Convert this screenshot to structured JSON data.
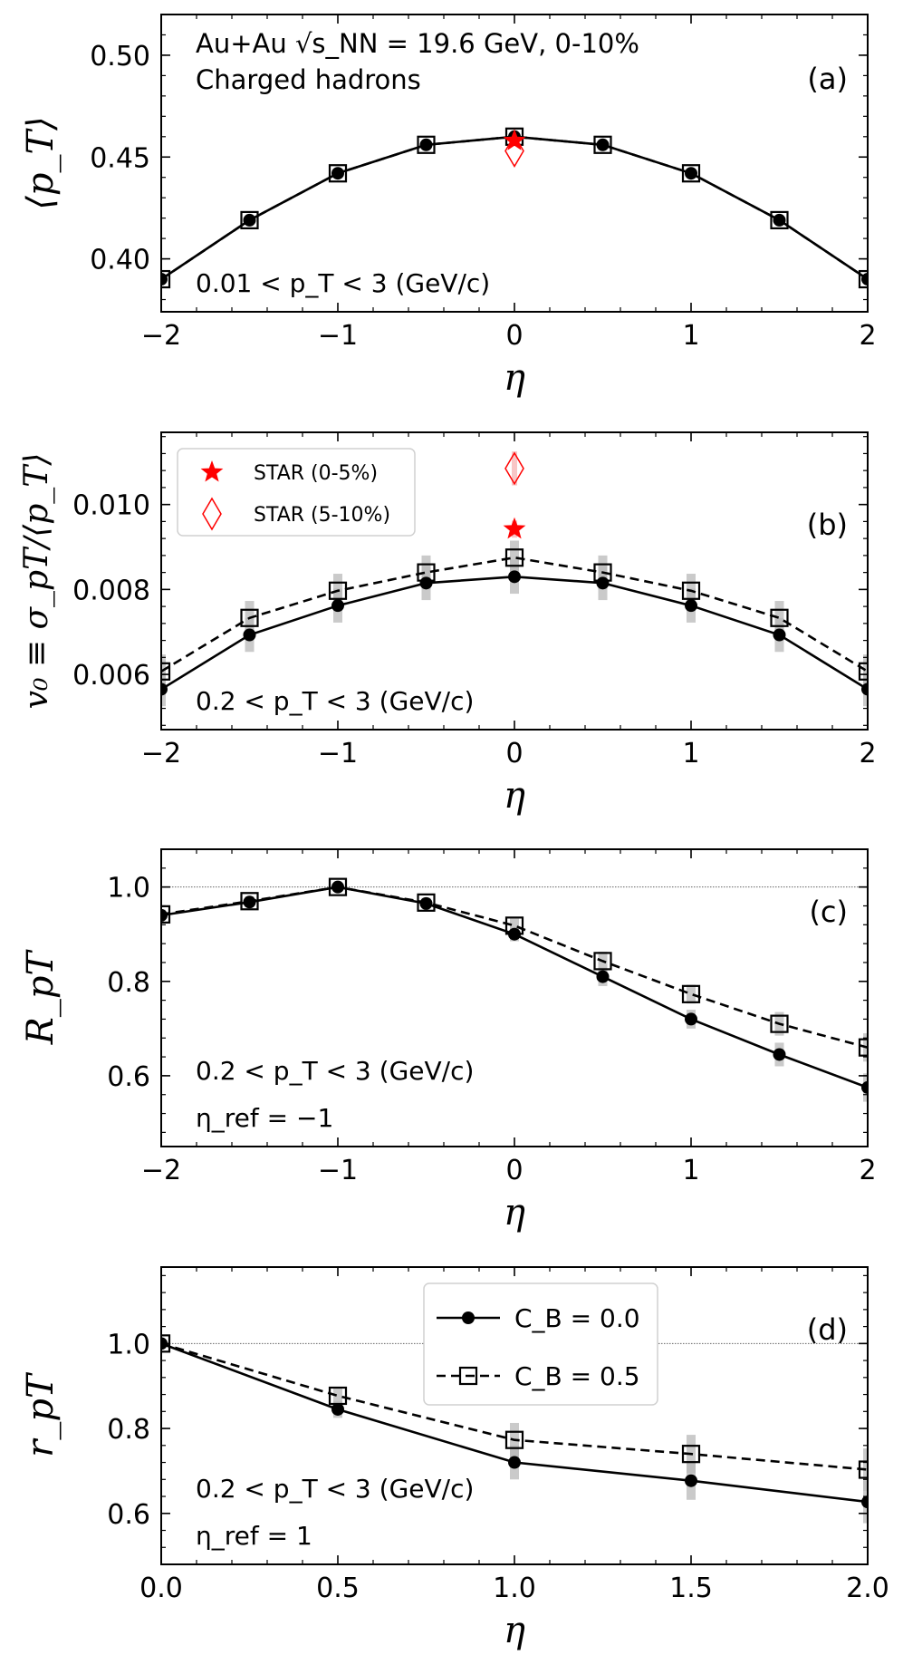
{
  "colors": {
    "model": "#000000",
    "band": "#b8b8b8",
    "star": "#ff0000",
    "refline": "#666666"
  },
  "legend_model": {
    "c0": "C_B = 0.0",
    "c05": "C_B = 0.5"
  },
  "chart_data": [
    {
      "id": "a",
      "type": "line",
      "title": "Au+Au √s_NN = 19.6 GeV, 0-10%",
      "subtitle": "Charged hadrons",
      "panel_label": "(a)",
      "annotations": [
        "0.01 < p_T < 3 (GeV/c)"
      ],
      "xlabel": "η",
      "ylabel": "⟨p_T⟩",
      "xlim": [
        -2,
        2
      ],
      "ylim": [
        0.374,
        0.52
      ],
      "xticks": [
        -2,
        -1,
        0,
        1,
        2
      ],
      "xtick_labels": [
        "−2",
        "−1",
        "0",
        "1",
        "2"
      ],
      "yticks": [
        0.4,
        0.45,
        0.5
      ],
      "ytick_labels": [
        "0.40",
        "0.45",
        "0.50"
      ],
      "ref_line": null,
      "x": [
        -2,
        -1.5,
        -1,
        -0.5,
        0,
        0.5,
        1,
        1.5,
        2
      ],
      "series": [
        {
          "name": "C_B = 0.0",
          "marker": "circle",
          "dash": false,
          "values": [
            0.39,
            0.419,
            0.442,
            0.456,
            0.46,
            0.456,
            0.442,
            0.419,
            0.39
          ],
          "err": [
            0,
            0,
            0,
            0,
            0,
            0,
            0,
            0,
            0
          ]
        },
        {
          "name": "C_B = 0.5",
          "marker": "square",
          "dash": true,
          "values": [
            0.39,
            0.419,
            0.442,
            0.456,
            0.46,
            0.456,
            0.442,
            0.419,
            0.39
          ],
          "err": [
            0,
            0,
            0,
            0,
            0,
            0,
            0,
            0,
            0
          ]
        }
      ],
      "star_points": [
        {
          "name": "STAR (0-5%)",
          "marker": "star",
          "x": 0,
          "y": 0.458,
          "err": 0
        },
        {
          "name": "STAR (5-10%)",
          "marker": "diamond",
          "x": 0,
          "y": 0.453,
          "err": 0
        }
      ],
      "legend_entries": []
    },
    {
      "id": "b",
      "type": "line",
      "panel_label": "(b)",
      "annotations": [
        "0.2 < p_T < 3 (GeV/c)"
      ],
      "xlabel": "η",
      "ylabel": "v₀ ≡ σ_pT/⟨p_T⟩",
      "xlim": [
        -2,
        2
      ],
      "ylim": [
        0.0047,
        0.0117
      ],
      "xticks": [
        -2,
        -1,
        0,
        1,
        2
      ],
      "xtick_labels": [
        "−2",
        "−1",
        "0",
        "1",
        "2"
      ],
      "yticks": [
        0.006,
        0.008,
        0.01
      ],
      "ytick_labels": [
        "0.006",
        "0.008",
        "0.010"
      ],
      "ref_line": null,
      "x": [
        -2,
        -1.5,
        -1,
        -0.5,
        0,
        0.5,
        1,
        1.5,
        2
      ],
      "series": [
        {
          "name": "C_B = 0.0",
          "marker": "circle",
          "dash": false,
          "values": [
            0.00565,
            0.00693,
            0.00762,
            0.00815,
            0.0083,
            0.00815,
            0.00762,
            0.00693,
            0.00565
          ],
          "err": [
            0.0004,
            0.0004,
            0.0004,
            0.0004,
            0.0004,
            0.0004,
            0.0004,
            0.0004,
            0.0004
          ]
        },
        {
          "name": "C_B = 0.5",
          "marker": "square",
          "dash": true,
          "values": [
            0.00607,
            0.00733,
            0.00797,
            0.0084,
            0.00875,
            0.0084,
            0.00797,
            0.00733,
            0.00607
          ],
          "err": [
            0.0004,
            0.0004,
            0.0004,
            0.0004,
            0.0004,
            0.0004,
            0.0004,
            0.0004,
            0.0004
          ]
        }
      ],
      "star_points": [
        {
          "name": "STAR (0-5%)",
          "marker": "star",
          "x": 0,
          "y": 0.00942,
          "err": 0.0002
        },
        {
          "name": "STAR (5-10%)",
          "marker": "diamond",
          "x": 0,
          "y": 0.01085,
          "err": 0.0004
        }
      ],
      "legend_entries": [
        {
          "label": "STAR (0-5%)",
          "marker": "star"
        },
        {
          "label": "STAR (5-10%)",
          "marker": "diamond"
        }
      ]
    },
    {
      "id": "c",
      "type": "line",
      "panel_label": "(c)",
      "annotations": [
        "0.2 < p_T < 3 (GeV/c)",
        "η_ref = −1"
      ],
      "xlabel": "η",
      "ylabel": "R_pT",
      "xlim": [
        -2,
        2
      ],
      "ylim": [
        0.45,
        1.08
      ],
      "xticks": [
        -2,
        -1,
        0,
        1,
        2
      ],
      "xtick_labels": [
        "−2",
        "−1",
        "0",
        "1",
        "2"
      ],
      "yticks": [
        0.6,
        0.8,
        1.0
      ],
      "ytick_labels": [
        "0.6",
        "0.8",
        "1.0"
      ],
      "ref_line": 1.0,
      "x": [
        -2,
        -1.5,
        -1,
        -0.5,
        0,
        0.5,
        1,
        1.5,
        2
      ],
      "series": [
        {
          "name": "C_B = 0.0",
          "marker": "circle",
          "dash": false,
          "values": [
            0.94,
            0.968,
            1.0,
            0.965,
            0.9,
            0.81,
            0.72,
            0.645,
            0.575
          ],
          "err": [
            0.01,
            0.01,
            0,
            0.01,
            0.015,
            0.02,
            0.02,
            0.025,
            0.03
          ]
        },
        {
          "name": "C_B = 0.5",
          "marker": "square",
          "dash": true,
          "values": [
            0.942,
            0.97,
            1.0,
            0.967,
            0.918,
            0.843,
            0.773,
            0.71,
            0.66
          ],
          "err": [
            0.01,
            0.01,
            0,
            0.01,
            0.015,
            0.02,
            0.02,
            0.025,
            0.03
          ]
        }
      ],
      "star_points": [],
      "legend_entries": []
    },
    {
      "id": "d",
      "type": "line",
      "panel_label": "(d)",
      "annotations": [
        "0.2 < p_T < 3 (GeV/c)",
        "η_ref = 1"
      ],
      "xlabel": "η",
      "ylabel": "r_pT",
      "xlim": [
        0,
        2
      ],
      "ylim": [
        0.48,
        1.18
      ],
      "xticks": [
        0,
        0.5,
        1.0,
        1.5,
        2.0
      ],
      "xtick_labels": [
        "0.0",
        "0.5",
        "1.0",
        "1.5",
        "2.0"
      ],
      "yticks": [
        0.6,
        0.8,
        1.0
      ],
      "ytick_labels": [
        "0.6",
        "0.8",
        "1.0"
      ],
      "ref_line": 1.0,
      "x": [
        0,
        0.5,
        1.0,
        1.5,
        2.0
      ],
      "series": [
        {
          "name": "C_B = 0.0",
          "marker": "circle",
          "dash": false,
          "values": [
            1.0,
            0.845,
            0.72,
            0.677,
            0.627
          ],
          "err": [
            0,
            0.02,
            0.04,
            0.045,
            0.05
          ]
        },
        {
          "name": "C_B = 0.5",
          "marker": "square",
          "dash": true,
          "values": [
            1.0,
            0.877,
            0.773,
            0.74,
            0.703
          ],
          "err": [
            0,
            0.02,
            0.04,
            0.045,
            0.05
          ]
        }
      ],
      "star_points": [],
      "legend_entries": [
        {
          "label": "C_B = 0.0",
          "marker": "circle",
          "dash": false
        },
        {
          "label": "C_B = 0.5",
          "marker": "square",
          "dash": true
        }
      ]
    }
  ]
}
